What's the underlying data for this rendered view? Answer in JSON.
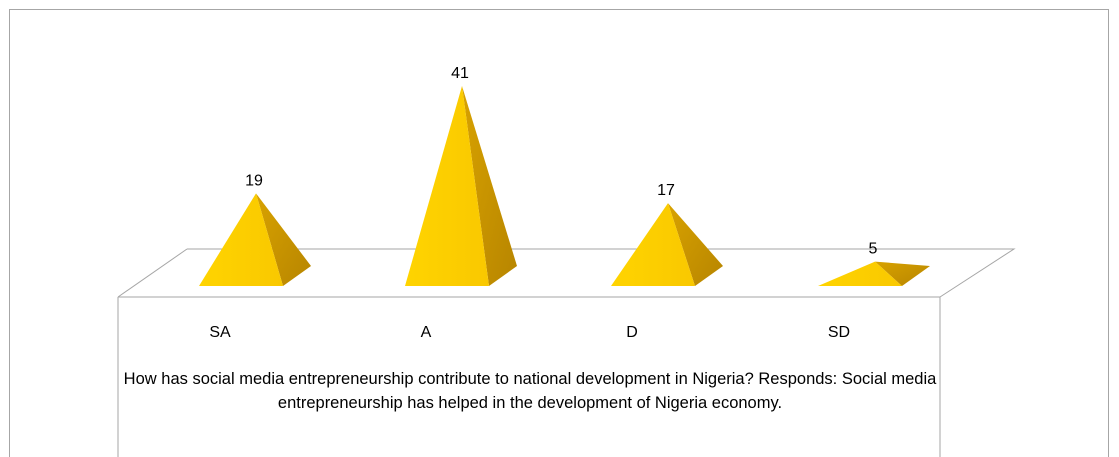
{
  "chart_data": {
    "type": "bar",
    "style": "3d-pyramid",
    "categories": [
      "SA",
      "A",
      "D",
      "SD"
    ],
    "values": [
      19,
      41,
      17,
      5
    ],
    "title": "",
    "xlabel": "How has social media entrepreneurship contribute to national development in Nigeria? Responds: Social media entrepreneurship has helped in the development of Nigeria economy.",
    "ylabel": "",
    "ylim": [
      0,
      41
    ],
    "grid": false,
    "legend": "none",
    "data_labels": true,
    "colors": {
      "pyramid_front": "#ffcc00",
      "pyramid_side": "#cc9a00",
      "floor_stroke": "#a6a6a6",
      "frame_stroke": "#a6a6a6"
    }
  }
}
